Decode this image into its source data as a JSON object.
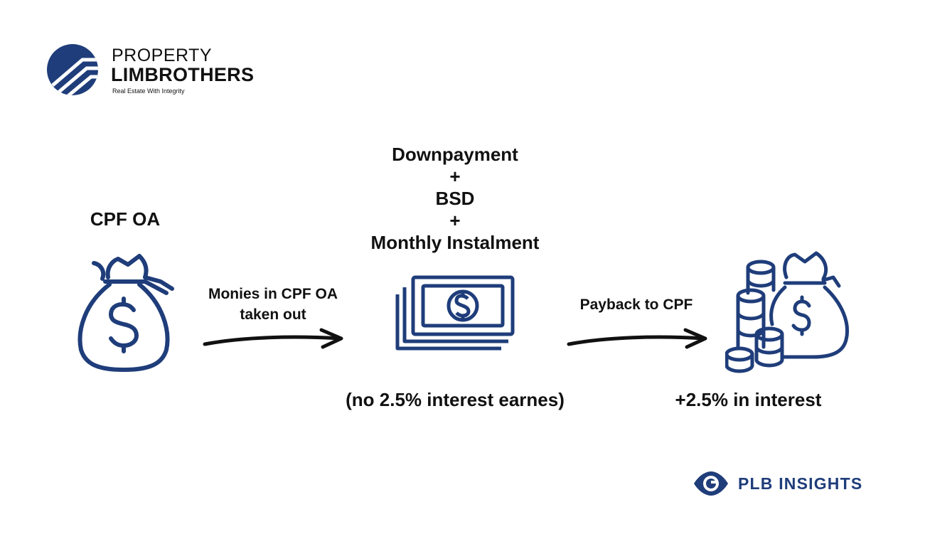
{
  "brand": {
    "line1": "PROPERTY",
    "line2": "LIMBROTHERS",
    "tagline": "Real Estate With Integrity"
  },
  "colors": {
    "icon_blue": "#1f3d7a",
    "text": "#111111",
    "background": "#ffffff"
  },
  "diagram": {
    "source_label": "CPF OA",
    "payments": [
      "Downpayment",
      "+",
      "BSD",
      "+",
      "Monthly Instalment"
    ],
    "arrow1_label": [
      "Monies in CPF OA",
      "taken out"
    ],
    "arrow2_label": "Payback to CPF",
    "no_interest_note": "(no 2.5% interest earnes)",
    "interest_note": "+2.5% in interest",
    "icons": [
      "money-bag-icon",
      "cash-stack-icon",
      "coins-money-bag-icon",
      "arrow-right-icon"
    ]
  },
  "footer": {
    "label": "PLB INSIGHTS",
    "icon": "eye-icon"
  }
}
